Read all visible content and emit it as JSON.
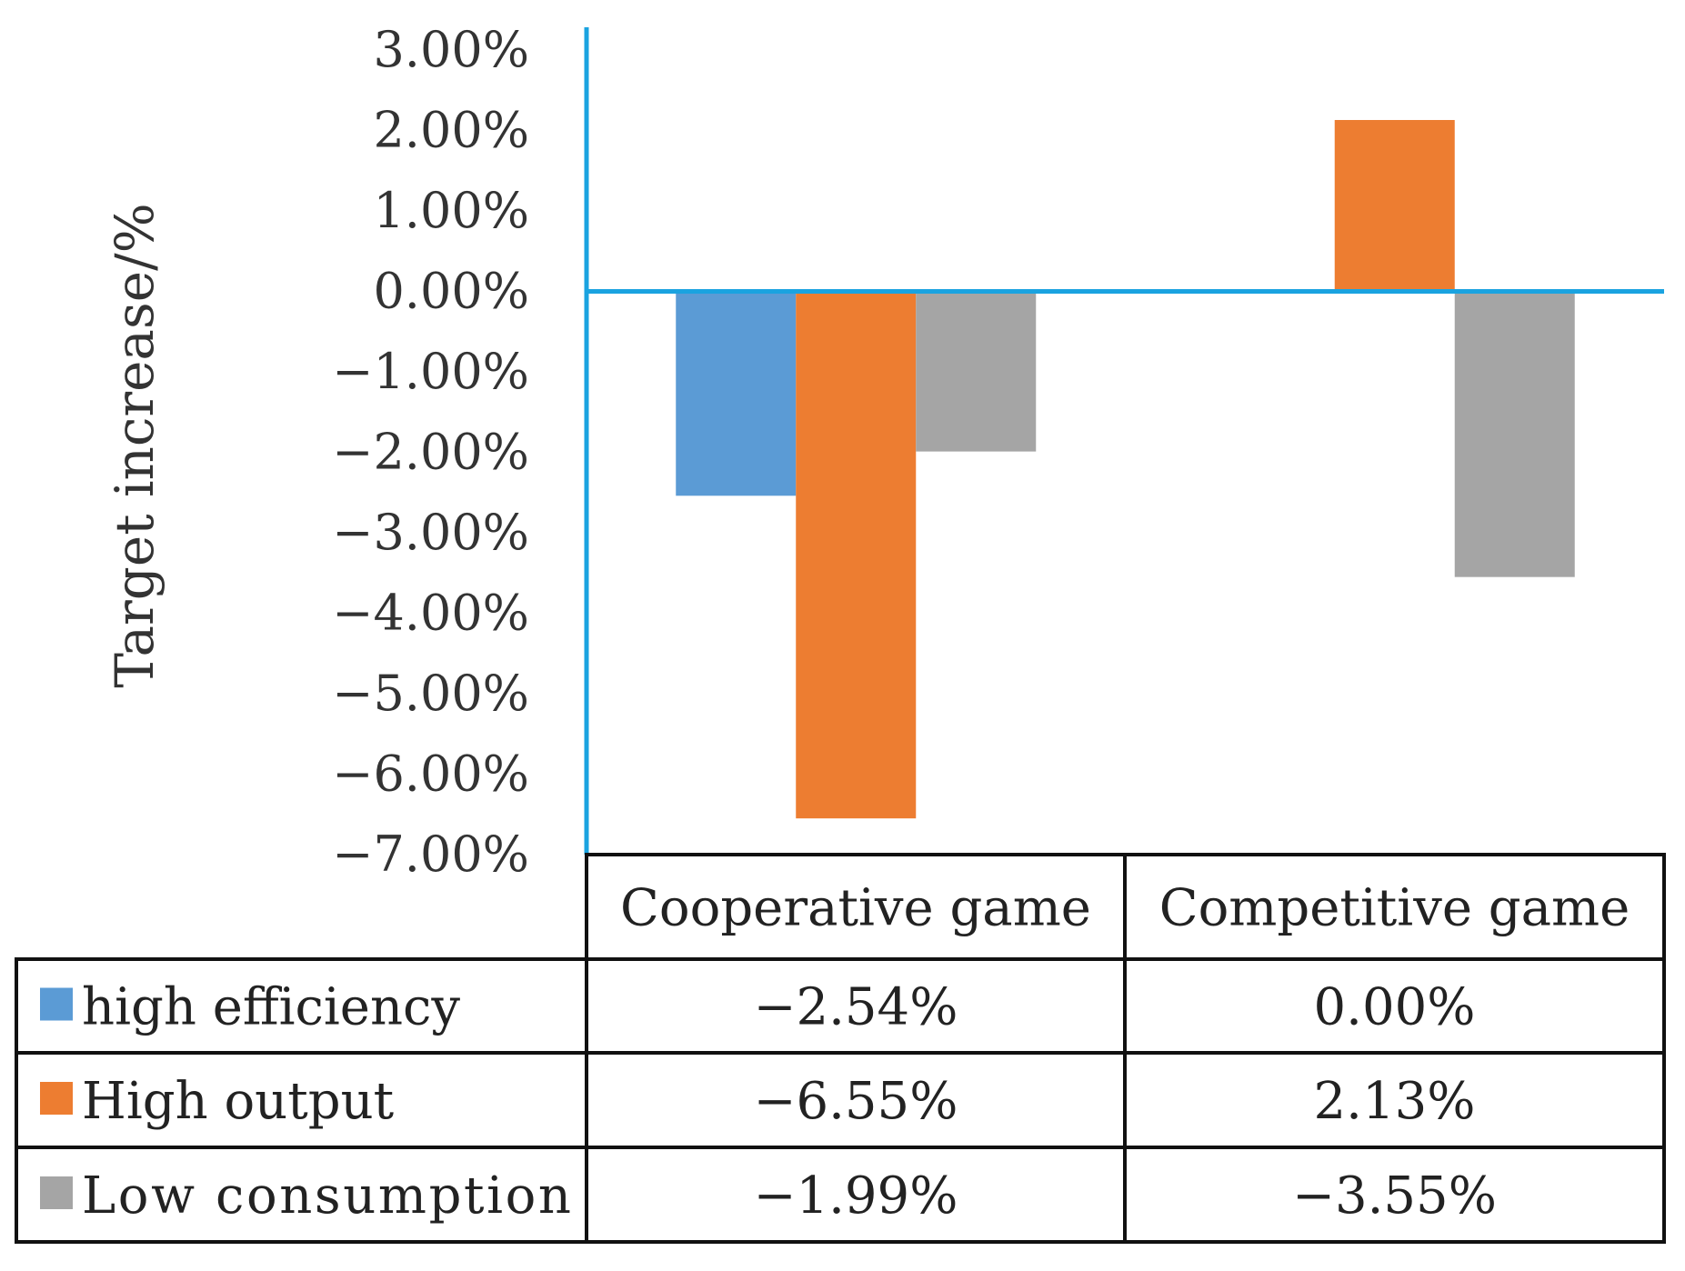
{
  "chart_data": {
    "type": "bar",
    "title": "",
    "xlabel": "",
    "ylabel": "Target increase/%",
    "ylim": [
      -7,
      3
    ],
    "y_ticks": [
      "3.00%",
      "2.00%",
      "1.00%",
      "0.00%",
      "−1.00%",
      "−2.00%",
      "−3.00%",
      "−4.00%",
      "−5.00%",
      "−6.00%",
      "−7.00%"
    ],
    "y_tick_values": [
      3,
      2,
      1,
      0,
      -1,
      -2,
      -3,
      -4,
      -5,
      -6,
      -7
    ],
    "categories": [
      "Cooperative game",
      "Competitive game"
    ],
    "series": [
      {
        "name": "high efficiency",
        "color": "#5b9bd5",
        "values": [
          -2.54,
          0.0
        ],
        "labels": [
          "−2.54%",
          "0.00%"
        ]
      },
      {
        "name": "High output",
        "color": "#ed7d31",
        "values": [
          -6.55,
          2.13
        ],
        "labels": [
          "−6.55%",
          "2.13%"
        ]
      },
      {
        "name": "Low consumption",
        "color": "#a5a5a5",
        "values": [
          -1.99,
          -3.55
        ],
        "labels": [
          "−1.99%",
          "−3.55%"
        ]
      }
    ],
    "grid": false,
    "legend": "data-table-bottom",
    "axis_color": "#1aa3e0"
  }
}
